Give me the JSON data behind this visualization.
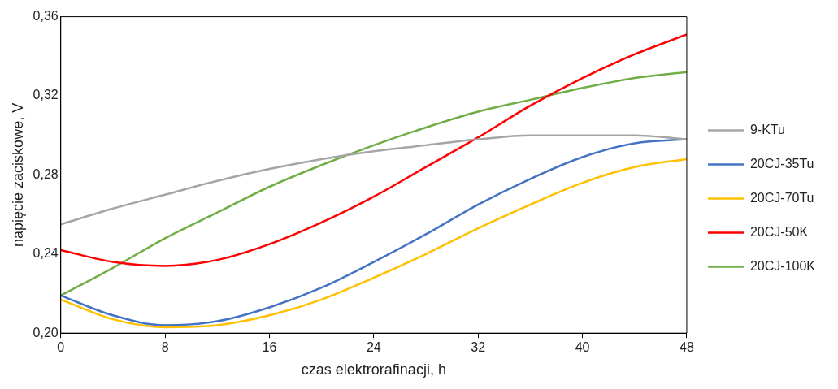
{
  "chart_data": {
    "type": "line",
    "xlabel": "czas elektrorafinacji, h",
    "ylabel": "napięcie zaciskowe, V",
    "x": [
      0,
      4,
      8,
      12,
      16,
      20,
      24,
      28,
      32,
      36,
      40,
      44,
      48
    ],
    "series": [
      {
        "name": "9-KTu",
        "color": "#a5a5a5",
        "values": [
          0.255,
          0.263,
          0.27,
          0.277,
          0.283,
          0.288,
          0.292,
          0.295,
          0.298,
          0.3,
          0.3,
          0.3,
          0.298
        ]
      },
      {
        "name": "20CJ-35Tu",
        "color": "#4472c4",
        "values": [
          0.219,
          0.209,
          0.204,
          0.206,
          0.213,
          0.223,
          0.236,
          0.25,
          0.265,
          0.278,
          0.289,
          0.296,
          0.298
        ]
      },
      {
        "name": "20CJ-70Tu",
        "color": "#ffc000",
        "values": [
          0.217,
          0.207,
          0.203,
          0.204,
          0.209,
          0.217,
          0.228,
          0.24,
          0.253,
          0.265,
          0.276,
          0.284,
          0.288
        ]
      },
      {
        "name": "20CJ-50K",
        "color": "#ff0000",
        "values": [
          0.242,
          0.236,
          0.234,
          0.237,
          0.245,
          0.256,
          0.269,
          0.284,
          0.299,
          0.315,
          0.329,
          0.341,
          0.351
        ]
      },
      {
        "name": "20CJ-100K",
        "color": "#70ad47",
        "values": [
          0.219,
          0.233,
          0.248,
          0.261,
          0.274,
          0.285,
          0.295,
          0.304,
          0.312,
          0.318,
          0.324,
          0.329,
          0.332
        ]
      }
    ],
    "xlim": [
      0,
      48
    ],
    "xticks": [
      0,
      8,
      16,
      24,
      32,
      40,
      48
    ],
    "ylim": [
      0.2,
      0.36
    ],
    "yticks": [
      {
        "value": 0.2,
        "label": "0,20"
      },
      {
        "value": 0.24,
        "label": "0,24"
      },
      {
        "value": 0.28,
        "label": "0,28"
      },
      {
        "value": 0.32,
        "label": "0,32"
      },
      {
        "value": 0.36,
        "label": "0,36"
      }
    ],
    "grid": false,
    "legend": "right",
    "marker": "none",
    "line_style": "solid"
  }
}
